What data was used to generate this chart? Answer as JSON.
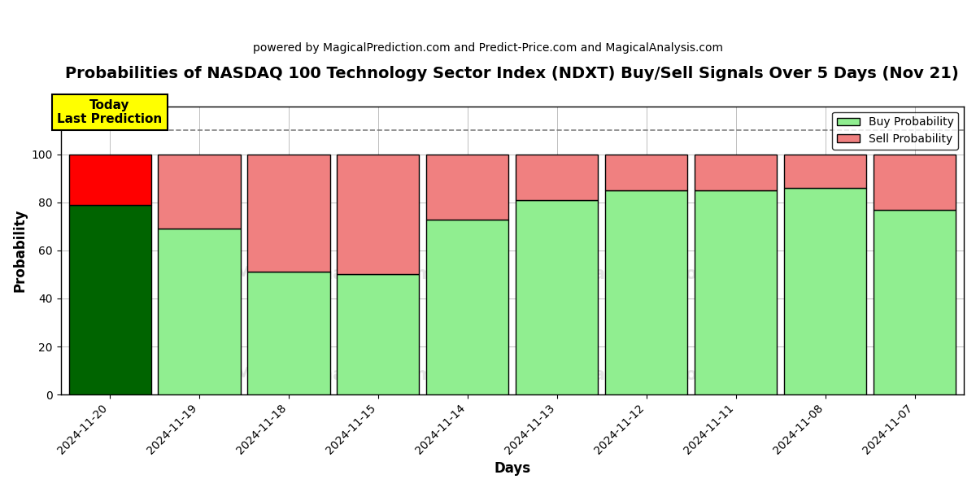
{
  "title": "Probabilities of NASDAQ 100 Technology Sector Index (NDXT) Buy/Sell Signals Over 5 Days (Nov 21)",
  "subtitle": "powered by MagicalPrediction.com and Predict-Price.com and MagicalAnalysis.com",
  "xlabel": "Days",
  "ylabel": "Probability",
  "dates": [
    "2024-11-20",
    "2024-11-19",
    "2024-11-18",
    "2024-11-15",
    "2024-11-14",
    "2024-11-13",
    "2024-11-12",
    "2024-11-11",
    "2024-11-08",
    "2024-11-07"
  ],
  "buy_values": [
    79,
    69,
    51,
    50,
    73,
    81,
    85,
    85,
    86,
    77
  ],
  "sell_values": [
    21,
    31,
    49,
    50,
    27,
    19,
    15,
    15,
    14,
    23
  ],
  "today_buy_color": "#006400",
  "today_sell_color": "#FF0000",
  "buy_color": "#90EE90",
  "sell_color": "#F08080",
  "today_annotation_text": "Today\nLast Prediction",
  "today_annotation_bg": "#FFFF00",
  "dashed_line_y": 110,
  "ylim": [
    0,
    120
  ],
  "yticks": [
    0,
    20,
    40,
    60,
    80,
    100
  ],
  "background_color": "#ffffff",
  "bar_edgecolor": "#000000",
  "bar_linewidth": 1.0,
  "title_fontsize": 14,
  "subtitle_fontsize": 10,
  "axis_label_fontsize": 12,
  "tick_fontsize": 10,
  "bar_width": 0.92
}
